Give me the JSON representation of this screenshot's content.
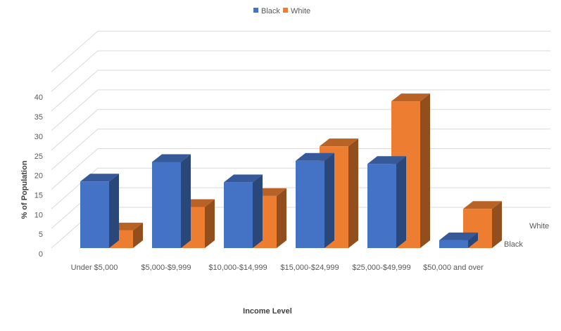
{
  "chart_data": {
    "type": "bar",
    "subtype": "3d-column",
    "title": "",
    "xlabel": "Income Level",
    "ylabel": "% of Population",
    "ylim": [
      0,
      45
    ],
    "yticks": [
      0,
      5,
      10,
      15,
      20,
      25,
      30,
      35,
      40
    ],
    "grid": true,
    "legend_position": "top",
    "categories": [
      "Under $5,000",
      "$5,000-$9,999",
      "$10,000-$14,999",
      "$15,000-$24,999",
      "$25,000-$49,999",
      "$50,000 and over"
    ],
    "series": [
      {
        "name": "Black",
        "color": "#4472C4",
        "values": [
          17,
          22,
          16.8,
          22.3,
          21.5,
          2
        ]
      },
      {
        "name": "White",
        "color": "#ED7D31",
        "values": [
          4.5,
          10.5,
          13.3,
          26,
          37.5,
          10
        ]
      }
    ]
  }
}
